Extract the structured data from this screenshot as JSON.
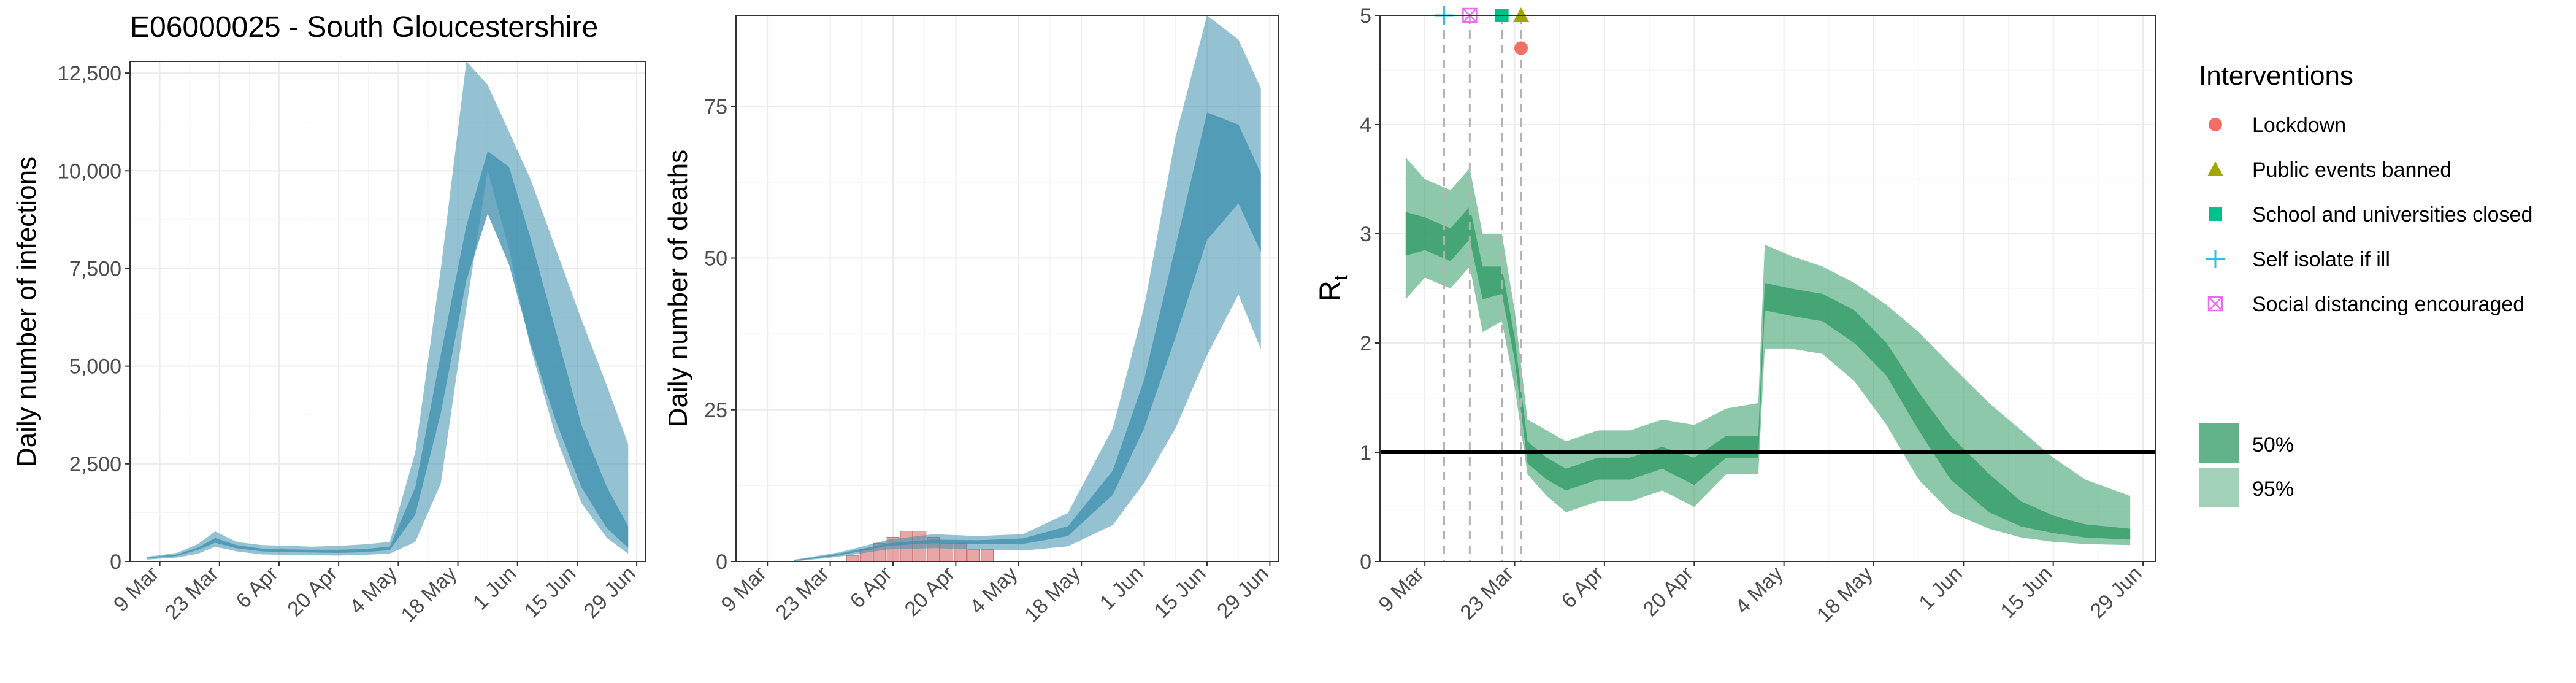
{
  "page_title": "E06000025 - South Gloucestershire",
  "colors": {
    "infection_band": "#3d8fad",
    "death_band": "#3d8fad",
    "rt_band": "#2e9a63",
    "observed_deaths": "#e08080",
    "lockdown": "#f07067",
    "public_events": "#a3a500",
    "school": "#00c08b",
    "self_isolate": "#30bfe0",
    "social_distancing": "#e76bf3",
    "gridline": "#ebebeb",
    "threshold": "#000000"
  },
  "x_ticks": [
    "9 Mar",
    "23 Mar",
    "6 Apr",
    "20 Apr",
    "4 May",
    "18 May",
    "1 Jun",
    "15 Jun",
    "29 Jun"
  ],
  "legend": {
    "interventions_title": "Interventions",
    "interventions": [
      {
        "label": "Lockdown",
        "shape": "circle",
        "color": "#f07067"
      },
      {
        "label": "Public events banned",
        "shape": "triangle",
        "color": "#a3a500"
      },
      {
        "label": "School and universities closed",
        "shape": "square",
        "color": "#00c08b"
      },
      {
        "label": "Self isolate if ill",
        "shape": "plus",
        "color": "#30bfe0"
      },
      {
        "label": "Social distancing encouraged",
        "shape": "boxx",
        "color": "#e76bf3"
      }
    ],
    "bands": [
      "50%",
      "95%"
    ]
  },
  "chart_data": [
    {
      "type": "area",
      "title": "E06000025 - South Gloucestershire",
      "ylabel": "Daily number of infections",
      "x_axis": "date",
      "xlim": [
        "2020-03-02",
        "2020-07-01"
      ],
      "ylim": [
        0,
        12800
      ],
      "yticks": [
        0,
        2500,
        5000,
        7500,
        10000,
        12500
      ],
      "ytick_labels": [
        "0",
        "2,500",
        "5,000",
        "7,500",
        "10,000",
        "12,500"
      ],
      "series": [
        {
          "band": "95%",
          "x": [
            "2020-03-06",
            "2020-03-13",
            "2020-03-18",
            "2020-03-22",
            "2020-03-27",
            "2020-04-02",
            "2020-04-08",
            "2020-04-14",
            "2020-04-20",
            "2020-04-26",
            "2020-05-02",
            "2020-05-08",
            "2020-05-14",
            "2020-05-20",
            "2020-05-25",
            "2020-05-30",
            "2020-06-04",
            "2020-06-10",
            "2020-06-16",
            "2020-06-22",
            "2020-06-27"
          ],
          "lower": [
            50,
            100,
            200,
            380,
            260,
            180,
            170,
            160,
            150,
            170,
            200,
            500,
            2000,
            6500,
            10000,
            8000,
            5500,
            3200,
            1500,
            600,
            200
          ],
          "upper": [
            120,
            220,
            450,
            770,
            500,
            420,
            400,
            380,
            400,
            440,
            500,
            2800,
            7500,
            12800,
            12200,
            11000,
            9800,
            8000,
            6200,
            4500,
            3000
          ]
        },
        {
          "band": "50%",
          "x": [
            "2020-03-06",
            "2020-03-13",
            "2020-03-18",
            "2020-03-22",
            "2020-03-27",
            "2020-04-02",
            "2020-04-08",
            "2020-04-14",
            "2020-04-20",
            "2020-04-26",
            "2020-05-02",
            "2020-05-08",
            "2020-05-14",
            "2020-05-20",
            "2020-05-25",
            "2020-05-30",
            "2020-06-04",
            "2020-06-10",
            "2020-06-16",
            "2020-06-22",
            "2020-06-27"
          ],
          "lower": [
            80,
            140,
            300,
            480,
            340,
            260,
            240,
            230,
            220,
            240,
            290,
            1200,
            3800,
            7200,
            8900,
            7600,
            5600,
            3600,
            1900,
            850,
            350
          ],
          "upper": [
            100,
            180,
            360,
            600,
            420,
            330,
            310,
            300,
            300,
            320,
            380,
            1900,
            5300,
            8600,
            10500,
            10100,
            8300,
            5900,
            3500,
            1900,
            900
          ]
        }
      ]
    },
    {
      "type": "area",
      "ylabel": "Daily number of deaths",
      "x_axis": "date",
      "xlim": [
        "2020-03-02",
        "2020-07-01"
      ],
      "ylim": [
        0,
        90
      ],
      "yticks": [
        0,
        25,
        50,
        75
      ],
      "ytick_labels": [
        "0",
        "25",
        "50",
        "75"
      ],
      "observed_deaths": {
        "x": [
          "2020-03-28",
          "2020-03-31",
          "2020-04-03",
          "2020-04-06",
          "2020-04-09",
          "2020-04-12",
          "2020-04-15",
          "2020-04-18",
          "2020-04-21",
          "2020-04-24",
          "2020-04-27"
        ],
        "values": [
          1,
          2,
          3,
          4,
          5,
          5,
          4,
          3,
          3,
          2,
          2
        ]
      },
      "series": [
        {
          "band": "95%",
          "x": [
            "2020-03-15",
            "2020-03-25",
            "2020-04-05",
            "2020-04-15",
            "2020-04-25",
            "2020-05-05",
            "2020-05-15",
            "2020-05-25",
            "2020-06-01",
            "2020-06-08",
            "2020-06-15",
            "2020-06-22",
            "2020-06-27"
          ],
          "lower": [
            0,
            0.8,
            2,
            2.2,
            2,
            1.8,
            2.5,
            6,
            13,
            22,
            34,
            44,
            35
          ],
          "upper": [
            0.3,
            1.5,
            3.6,
            4.5,
            4.2,
            4.5,
            8,
            22,
            42,
            70,
            90,
            86,
            78
          ]
        },
        {
          "band": "50%",
          "x": [
            "2020-03-15",
            "2020-03-25",
            "2020-04-05",
            "2020-04-15",
            "2020-04-25",
            "2020-05-05",
            "2020-05-15",
            "2020-05-25",
            "2020-06-01",
            "2020-06-08",
            "2020-06-15",
            "2020-06-22",
            "2020-06-27"
          ],
          "lower": [
            0.1,
            1,
            2.6,
            3,
            2.9,
            2.9,
            4.2,
            11,
            22,
            37,
            53,
            59,
            51
          ],
          "upper": [
            0.2,
            1.3,
            3,
            3.6,
            3.5,
            3.8,
            5.8,
            15,
            30,
            52,
            74,
            72,
            64
          ]
        }
      ]
    },
    {
      "type": "area",
      "ylabel": "Rt",
      "x_axis": "date",
      "xlim": [
        "2020-03-02",
        "2020-07-01"
      ],
      "ylim": [
        0,
        5
      ],
      "yticks": [
        0,
        1,
        2,
        3,
        4,
        5
      ],
      "ytick_labels": [
        "0",
        "1",
        "2",
        "3",
        "4",
        "5"
      ],
      "threshold": 1,
      "interventions": [
        {
          "label": "Self isolate if ill",
          "date": "2020-03-12",
          "rt_marker": 5.0
        },
        {
          "label": "Social distancing encouraged",
          "date": "2020-03-16",
          "rt_marker": 5.0
        },
        {
          "label": "School and universities closed",
          "date": "2020-03-21",
          "rt_marker": 5.0
        },
        {
          "label": "Public events banned",
          "date": "2020-03-24",
          "rt_marker": 5.0
        },
        {
          "label": "Lockdown",
          "date": "2020-03-24",
          "rt_marker": 4.7
        }
      ],
      "series": [
        {
          "band": "95%",
          "x": [
            "2020-03-06",
            "2020-03-09",
            "2020-03-13",
            "2020-03-16",
            "2020-03-18",
            "2020-03-21",
            "2020-03-23",
            "2020-03-25",
            "2020-03-28",
            "2020-03-31",
            "2020-04-05",
            "2020-04-10",
            "2020-04-15",
            "2020-04-20",
            "2020-04-25",
            "2020-04-30",
            "2020-05-01",
            "2020-05-05",
            "2020-05-10",
            "2020-05-15",
            "2020-05-20",
            "2020-05-25",
            "2020-05-30",
            "2020-06-05",
            "2020-06-10",
            "2020-06-15",
            "2020-06-20",
            "2020-06-27"
          ],
          "lower": [
            2.4,
            2.6,
            2.5,
            2.7,
            2.1,
            2.2,
            1.6,
            0.8,
            0.6,
            0.45,
            0.55,
            0.55,
            0.65,
            0.5,
            0.8,
            0.8,
            1.95,
            1.95,
            1.9,
            1.65,
            1.25,
            0.75,
            0.45,
            0.3,
            0.22,
            0.18,
            0.16,
            0.15
          ],
          "upper": [
            3.7,
            3.5,
            3.4,
            3.6,
            3.0,
            3.0,
            2.3,
            1.3,
            1.2,
            1.1,
            1.2,
            1.2,
            1.3,
            1.25,
            1.4,
            1.45,
            2.9,
            2.8,
            2.7,
            2.55,
            2.35,
            2.1,
            1.8,
            1.45,
            1.2,
            0.95,
            0.75,
            0.6
          ]
        },
        {
          "band": "50%",
          "x": [
            "2020-03-06",
            "2020-03-09",
            "2020-03-13",
            "2020-03-16",
            "2020-03-18",
            "2020-03-21",
            "2020-03-23",
            "2020-03-25",
            "2020-03-28",
            "2020-03-31",
            "2020-04-05",
            "2020-04-10",
            "2020-04-15",
            "2020-04-20",
            "2020-04-25",
            "2020-04-30",
            "2020-05-01",
            "2020-05-05",
            "2020-05-10",
            "2020-05-15",
            "2020-05-20",
            "2020-05-25",
            "2020-05-30",
            "2020-06-05",
            "2020-06-10",
            "2020-06-15",
            "2020-06-20",
            "2020-06-27"
          ],
          "lower": [
            2.8,
            2.85,
            2.75,
            2.95,
            2.4,
            2.45,
            1.85,
            0.9,
            0.75,
            0.65,
            0.75,
            0.75,
            0.85,
            0.7,
            0.95,
            0.95,
            2.3,
            2.25,
            2.2,
            2.0,
            1.7,
            1.2,
            0.75,
            0.45,
            0.32,
            0.26,
            0.22,
            0.2
          ],
          "upper": [
            3.2,
            3.15,
            3.05,
            3.25,
            2.7,
            2.7,
            2.05,
            1.1,
            0.95,
            0.85,
            0.95,
            0.95,
            1.05,
            0.95,
            1.15,
            1.15,
            2.55,
            2.5,
            2.45,
            2.3,
            2.0,
            1.55,
            1.15,
            0.8,
            0.55,
            0.42,
            0.34,
            0.3
          ]
        }
      ]
    }
  ]
}
